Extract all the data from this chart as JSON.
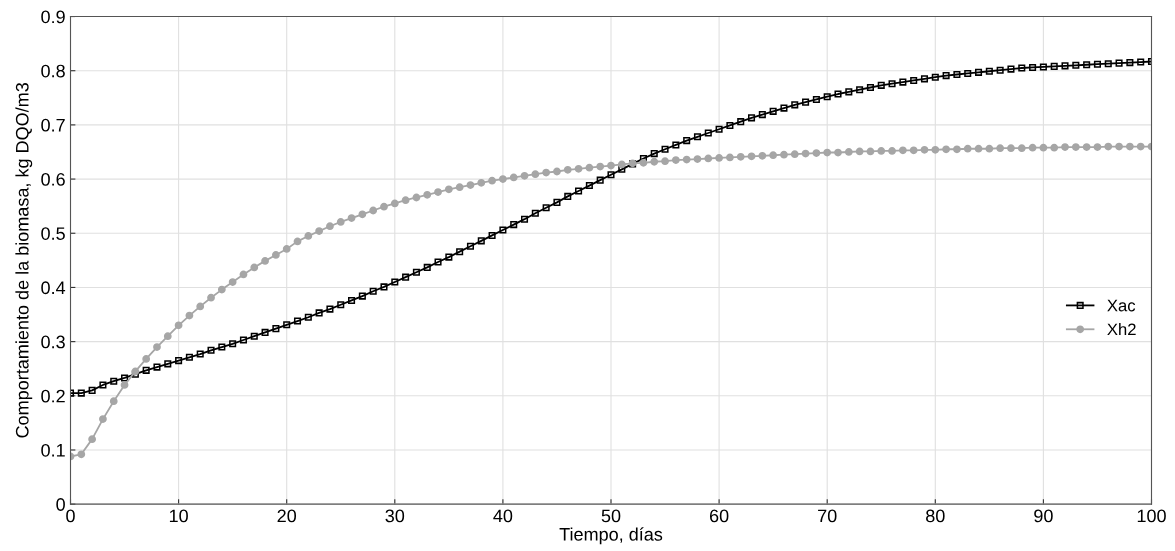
{
  "chart_data": {
    "type": "line",
    "xlabel": "Tiempo, días",
    "ylabel": "Comportamiento de la biomasa, kg DQO/m3",
    "x": [
      0,
      1,
      2,
      3,
      4,
      5,
      6,
      7,
      8,
      9,
      10,
      11,
      12,
      13,
      14,
      15,
      16,
      17,
      18,
      19,
      20,
      21,
      22,
      23,
      24,
      25,
      26,
      27,
      28,
      29,
      30,
      31,
      32,
      33,
      34,
      35,
      36,
      37,
      38,
      39,
      40,
      41,
      42,
      43,
      44,
      45,
      46,
      47,
      48,
      49,
      50,
      51,
      52,
      53,
      54,
      55,
      56,
      57,
      58,
      59,
      60,
      61,
      62,
      63,
      64,
      65,
      66,
      67,
      68,
      69,
      70,
      71,
      72,
      73,
      74,
      75,
      76,
      77,
      78,
      79,
      80,
      81,
      82,
      83,
      84,
      85,
      86,
      87,
      88,
      89,
      90,
      91,
      92,
      93,
      94,
      95,
      96,
      97,
      98,
      99,
      100
    ],
    "series": [
      {
        "name": "Xac",
        "color": "#000000",
        "marker": "square",
        "values": [
          0.205,
          0.205,
          0.21,
          0.22,
          0.227,
          0.233,
          0.24,
          0.247,
          0.253,
          0.259,
          0.265,
          0.271,
          0.277,
          0.284,
          0.29,
          0.296,
          0.303,
          0.31,
          0.317,
          0.324,
          0.331,
          0.338,
          0.345,
          0.353,
          0.36,
          0.368,
          0.376,
          0.384,
          0.393,
          0.401,
          0.41,
          0.419,
          0.428,
          0.437,
          0.447,
          0.456,
          0.466,
          0.476,
          0.486,
          0.496,
          0.506,
          0.516,
          0.526,
          0.537,
          0.547,
          0.557,
          0.568,
          0.578,
          0.588,
          0.598,
          0.608,
          0.618,
          0.628,
          0.638,
          0.647,
          0.655,
          0.663,
          0.671,
          0.678,
          0.685,
          0.692,
          0.699,
          0.706,
          0.713,
          0.719,
          0.725,
          0.731,
          0.737,
          0.742,
          0.747,
          0.752,
          0.757,
          0.761,
          0.765,
          0.769,
          0.773,
          0.776,
          0.779,
          0.782,
          0.785,
          0.788,
          0.791,
          0.793,
          0.795,
          0.797,
          0.799,
          0.801,
          0.803,
          0.805,
          0.806,
          0.807,
          0.808,
          0.809,
          0.81,
          0.811,
          0.812,
          0.813,
          0.814,
          0.815,
          0.816,
          0.817
        ]
      },
      {
        "name": "Xh2",
        "color": "#a6a6a6",
        "marker": "circle",
        "values": [
          0.088,
          0.092,
          0.12,
          0.157,
          0.19,
          0.22,
          0.245,
          0.268,
          0.29,
          0.31,
          0.33,
          0.348,
          0.365,
          0.381,
          0.396,
          0.41,
          0.424,
          0.437,
          0.449,
          0.46,
          0.471,
          0.485,
          0.495,
          0.504,
          0.513,
          0.521,
          0.528,
          0.535,
          0.542,
          0.549,
          0.555,
          0.561,
          0.566,
          0.571,
          0.576,
          0.581,
          0.585,
          0.589,
          0.593,
          0.597,
          0.6,
          0.603,
          0.606,
          0.609,
          0.612,
          0.614,
          0.617,
          0.619,
          0.621,
          0.623,
          0.625,
          0.627,
          0.629,
          0.63,
          0.632,
          0.633,
          0.635,
          0.636,
          0.637,
          0.638,
          0.639,
          0.64,
          0.641,
          0.642,
          0.643,
          0.644,
          0.645,
          0.646,
          0.647,
          0.648,
          0.649,
          0.649,
          0.65,
          0.651,
          0.651,
          0.652,
          0.652,
          0.653,
          0.653,
          0.654,
          0.654,
          0.655,
          0.655,
          0.656,
          0.656,
          0.656,
          0.657,
          0.657,
          0.657,
          0.658,
          0.658,
          0.658,
          0.659,
          0.659,
          0.659,
          0.659,
          0.66,
          0.66,
          0.66,
          0.66,
          0.66
        ]
      }
    ],
    "xlim": [
      0,
      100
    ],
    "xticks": [
      0,
      10,
      20,
      30,
      40,
      50,
      60,
      70,
      80,
      90,
      100
    ],
    "ylim": [
      0,
      0.9
    ],
    "yticks": [
      0,
      0.1,
      0.2,
      0.3,
      0.4,
      0.5,
      0.6,
      0.7,
      0.8,
      0.9
    ],
    "grid": true,
    "legend": "right",
    "line_style": "solid"
  }
}
